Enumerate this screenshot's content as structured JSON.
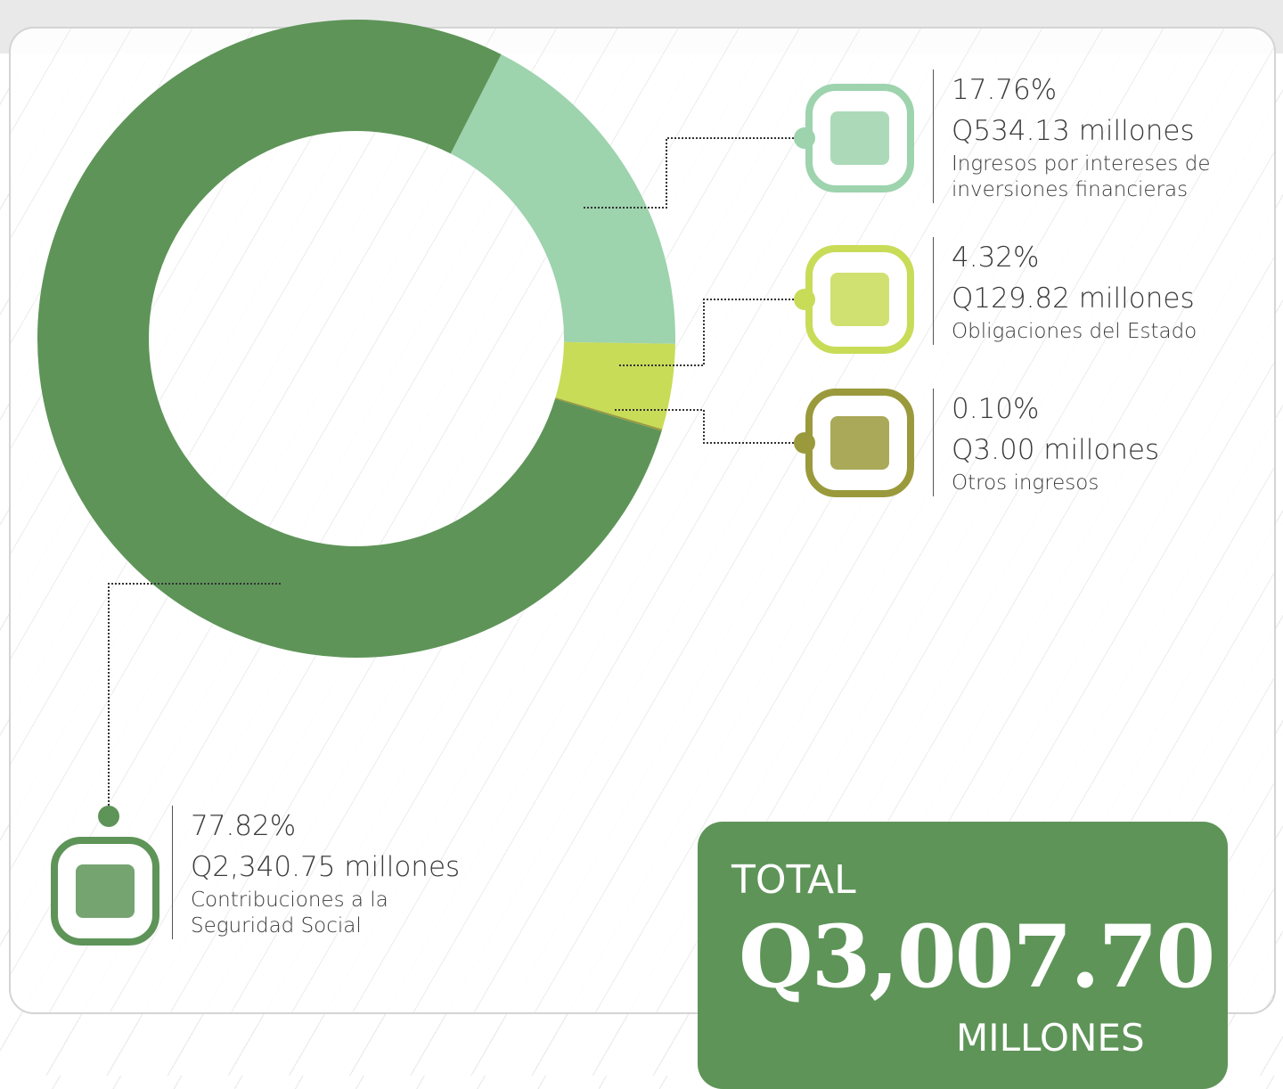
{
  "chart_data": {
    "type": "pie",
    "categories": [
      "Ingresos por intereses de inversiones financieras",
      "Obligaciones del Estado",
      "Otros ingresos",
      "Contribuciones a la Seguridad Social"
    ],
    "values": [
      17.76,
      4.32,
      0.1,
      77.82
    ],
    "value_labels": [
      "17.76%",
      "4.32%",
      "0.10%",
      "77.82%"
    ],
    "amounts": [
      "Q534.13 millones",
      "Q129.82 millones",
      "Q3.00 millones",
      "Q2,340.75 millones"
    ],
    "colors": [
      "#9dd3ad",
      "#c8dc58",
      "#9a9a3c",
      "#5e9458"
    ],
    "donut": true,
    "total": {
      "label": "TOTAL",
      "value": "Q3,007.70",
      "unit": "MILLONES"
    }
  }
}
